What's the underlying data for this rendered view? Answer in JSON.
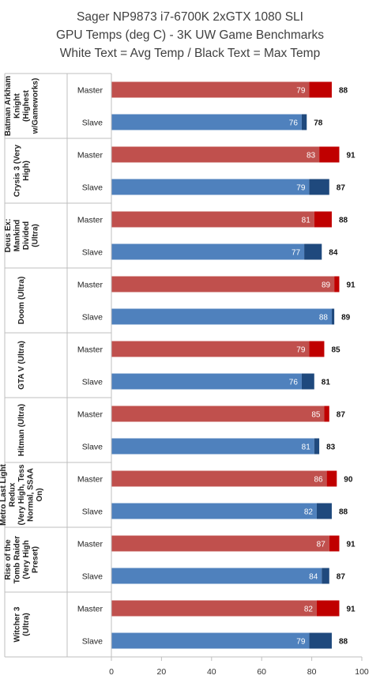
{
  "chart_data": {
    "type": "bar",
    "orientation": "horizontal",
    "stacked": true,
    "title": [
      "Sager NP9873 i7-6700K 2xGTX 1080 SLI",
      "GPU Temps (deg C) - 3K UW Game Benchmarks",
      "White Text = Avg Temp / Black Text = Max Temp"
    ],
    "xlim": [
      0,
      100
    ],
    "xticks": [
      0,
      20,
      40,
      60,
      80,
      100
    ],
    "grid": false,
    "colors": {
      "master_avg": "#C0504D",
      "master_max": "#C00000",
      "slave_avg": "#4F81BD",
      "slave_max": "#1F497D"
    },
    "groups": [
      {
        "name": "Batman Arkham Knight (Highest w/Gameworks)",
        "name_lines": [
          "Batman Arkham",
          "Knight",
          "(Highest",
          "w/Gameworks)"
        ],
        "rows": [
          {
            "label": "Master",
            "avg": 79,
            "max": 88
          },
          {
            "label": "Slave",
            "avg": 76,
            "max": 78
          }
        ]
      },
      {
        "name": "Crysis 3 (Very High)",
        "name_lines": [
          "Crysis 3 (Very",
          "High)"
        ],
        "rows": [
          {
            "label": "Master",
            "avg": 83,
            "max": 91
          },
          {
            "label": "Slave",
            "avg": 79,
            "max": 87
          }
        ]
      },
      {
        "name": "Deus Ex: Mankind Divided (Ultra)",
        "name_lines": [
          "Deus Ex:",
          "Mankind",
          "Divided",
          "(Ultra)"
        ],
        "rows": [
          {
            "label": "Master",
            "avg": 81,
            "max": 88
          },
          {
            "label": "Slave",
            "avg": 77,
            "max": 84
          }
        ]
      },
      {
        "name": "Doom (Ultra)",
        "name_lines": [
          "Doom (Ultra)"
        ],
        "rows": [
          {
            "label": "Master",
            "avg": 89,
            "max": 91
          },
          {
            "label": "Slave",
            "avg": 88,
            "max": 89
          }
        ]
      },
      {
        "name": "GTA V (Ultra)",
        "name_lines": [
          "GTA V (Ultra)"
        ],
        "rows": [
          {
            "label": "Master",
            "avg": 79,
            "max": 85
          },
          {
            "label": "Slave",
            "avg": 76,
            "max": 81
          }
        ]
      },
      {
        "name": "Hitman (Ultra)",
        "name_lines": [
          "Hitman (Ultra)"
        ],
        "rows": [
          {
            "label": "Master",
            "avg": 85,
            "max": 87
          },
          {
            "label": "Slave",
            "avg": 81,
            "max": 83
          }
        ]
      },
      {
        "name": "Metro Last Light Redux (Very High, Tess Normal, SSAA On)",
        "name_lines": [
          "Metro Last Light",
          "Redux",
          "(Very High, Tess",
          "Normal, SSAA",
          "On)"
        ],
        "rows": [
          {
            "label": "Master",
            "avg": 86,
            "max": 90
          },
          {
            "label": "Slave",
            "avg": 82,
            "max": 88
          }
        ]
      },
      {
        "name": "Rise of the Tomb Raider (Very High Preset)",
        "name_lines": [
          "Rise of the",
          "Tomb Raider",
          "(Very High",
          "Preset)"
        ],
        "rows": [
          {
            "label": "Master",
            "avg": 87,
            "max": 91
          },
          {
            "label": "Slave",
            "avg": 84,
            "max": 87
          }
        ]
      },
      {
        "name": "Witcher 3 (Ultra)",
        "name_lines": [
          "Witcher 3",
          "(Ultra)"
        ],
        "rows": [
          {
            "label": "Master",
            "avg": 82,
            "max": 91
          },
          {
            "label": "Slave",
            "avg": 79,
            "max": 88
          }
        ]
      }
    ]
  }
}
